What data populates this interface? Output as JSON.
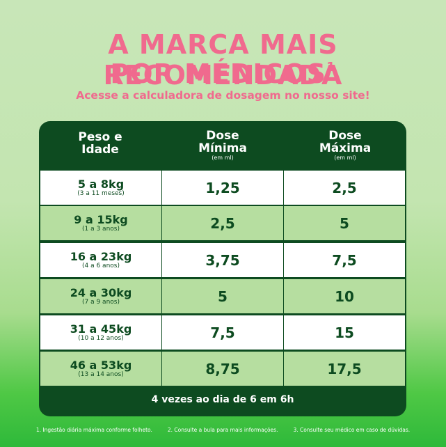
{
  "headline": {
    "line1": "A MARCA MAIS RECOMENDADA",
    "line2": "POR MÉDICOS",
    "line2_sup": "1",
    "subtitle": "Acesse a calculadora de dosagem no nosso site!"
  },
  "colors": {
    "pink": "#f06a8e",
    "dark_green": "#0d4b20",
    "light_green_row": "#b6dea0",
    "white_row": "#ffffff"
  },
  "table": {
    "headers": {
      "col1": "Peso e Idade",
      "col2": "Dose Mínima",
      "col2_unit": "(em ml)",
      "col3": "Dose Máxima",
      "col3_unit": "(em ml)"
    },
    "rows": [
      {
        "weight": "5 a 8kg",
        "age": "(3 a 11 meses)",
        "min": "1,25",
        "max": "2,5"
      },
      {
        "weight": "9 a 15kg",
        "age": "(1 a 3 anos)",
        "min": "2,5",
        "max": "5"
      },
      {
        "weight": "16 a 23kg",
        "age": "(4 a 6 anos)",
        "min": "3,75",
        "max": "7,5"
      },
      {
        "weight": "24 a 30kg",
        "age": "(7 a 9 anos)",
        "min": "5",
        "max": "10"
      },
      {
        "weight": "31 a 45kg",
        "age": "(10 a 12 anos)",
        "min": "7,5",
        "max": "15"
      },
      {
        "weight": "46 a 53kg",
        "age": "(13 a 14 anos)",
        "min": "8,75",
        "max": "17,5"
      }
    ],
    "footer": "4 vezes ao dia de 6 em 6h"
  },
  "footnotes": [
    "1. Ingestão diária máxima conforme folheto.",
    "2. Consulte a bula para mais informações.",
    "3. Consulte seu médico em caso de dúvidas."
  ]
}
